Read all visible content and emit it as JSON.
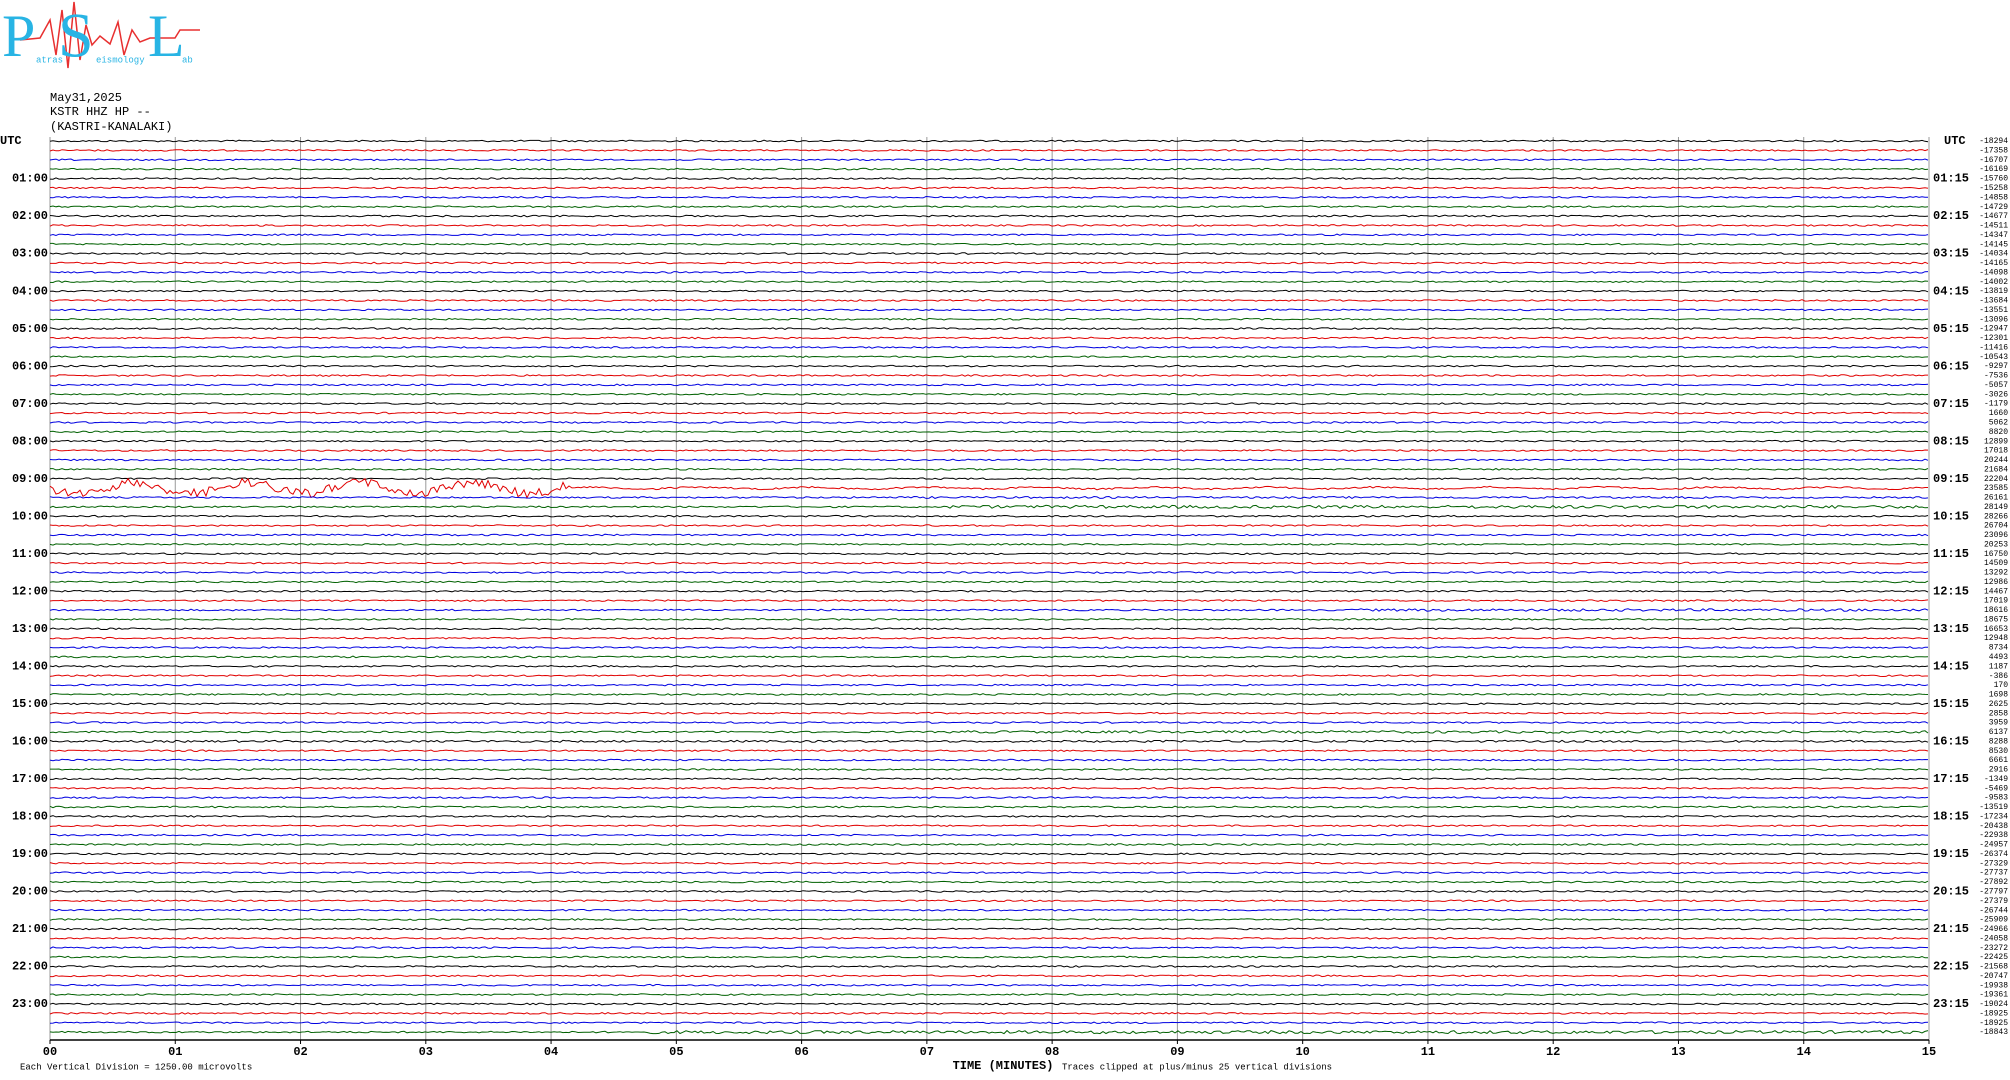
{
  "chart_data": {
    "type": "helicorder",
    "logo": {
      "letters": [
        "P",
        "S",
        "L"
      ],
      "words": [
        "atras",
        "eismology",
        "ab"
      ]
    },
    "header": [
      "May31,2025",
      "KSTR HHZ HP --",
      "(KASTRI-KANALAKI)"
    ],
    "left_labels": [
      "UTC",
      "01:00",
      "02:00",
      "03:00",
      "04:00",
      "05:00",
      "06:00",
      "07:00",
      "08:00",
      "09:00",
      "10:00",
      "11:00",
      "12:00",
      "13:00",
      "14:00",
      "15:00",
      "16:00",
      "17:00",
      "18:00",
      "19:00",
      "20:00",
      "21:00",
      "22:00",
      "23:00"
    ],
    "right_labels": [
      "UTC",
      "01:15",
      "02:15",
      "03:15",
      "04:15",
      "05:15",
      "06:15",
      "07:15",
      "08:15",
      "09:15",
      "10:15",
      "11:15",
      "12:15",
      "13:15",
      "14:15",
      "15:15",
      "16:15",
      "17:15",
      "18:15",
      "19:15",
      "20:15",
      "21:15",
      "22:15",
      "23:15"
    ],
    "right_values": [
      -18294,
      -17358,
      -16707,
      -16169,
      -15760,
      -15258,
      -14858,
      -14729,
      -14677,
      -14511,
      -14347,
      -14145,
      -14034,
      -14165,
      -14098,
      -14002,
      -13819,
      -13684,
      -13551,
      -13096,
      -12947,
      -12301,
      -11416,
      -10543,
      -9297,
      -7536,
      -5057,
      -3026,
      -1179,
      1660,
      5062,
      8820,
      12899,
      17018,
      20244,
      21684,
      22204,
      23585,
      26161,
      28149,
      28266,
      26704,
      23096,
      20253,
      16750,
      14509,
      13292,
      12986,
      14467,
      17019,
      18616,
      18675,
      16653,
      12948,
      8734,
      4493,
      1187,
      -386,
      170,
      1698,
      2625,
      2858,
      3959,
      6137,
      8288,
      8530,
      6661,
      2916,
      -1349,
      -5469,
      -9583,
      -13519,
      -17234,
      -20438,
      -22938,
      -24957,
      -26374,
      -27329,
      -27737,
      -27892,
      -27797,
      -27379,
      -26744,
      -25909,
      -24966,
      -24058,
      -23272,
      -22425,
      -21568,
      -20747,
      -19938,
      -19361,
      -19024,
      -18925,
      -18925,
      -18843
    ],
    "trace_colors": [
      "#000000",
      "#e00000",
      "#0000e0",
      "#006000"
    ],
    "xlim": [
      0,
      15
    ],
    "xticks": [
      {
        "value": 0,
        "label": "00"
      },
      {
        "value": 1,
        "label": "01"
      },
      {
        "value": 2,
        "label": "02"
      },
      {
        "value": 3,
        "label": "03"
      },
      {
        "value": 4,
        "label": "04"
      },
      {
        "value": 5,
        "label": "05"
      },
      {
        "value": 6,
        "label": "06"
      },
      {
        "value": 7,
        "label": "07"
      },
      {
        "value": 8,
        "label": "08"
      },
      {
        "value": 9,
        "label": "09"
      },
      {
        "value": 10,
        "label": "10"
      },
      {
        "value": 11,
        "label": "11"
      },
      {
        "value": 12,
        "label": "12"
      },
      {
        "value": 13,
        "label": "13"
      },
      {
        "value": 14,
        "label": "14"
      },
      {
        "value": 15,
        "label": "15"
      }
    ],
    "xlabel": "TIME (MINUTES)",
    "footnote_left": "Each Vertical Division = 1250.00 microvolts",
    "footnote_right": "Traces clipped at plus/minus 25 vertical divisions",
    "grid": true
  }
}
